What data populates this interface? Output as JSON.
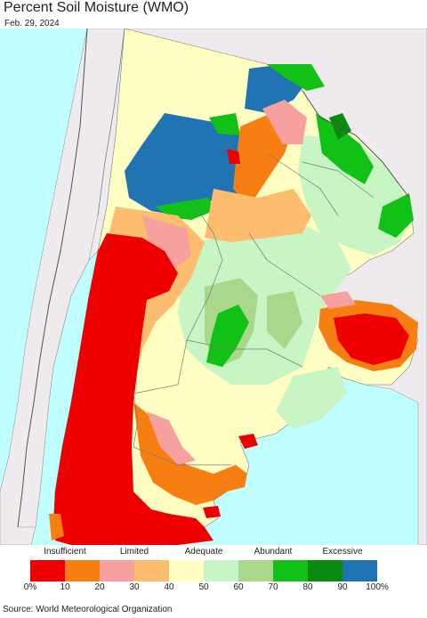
{
  "title": "Percent Soil Moisture (WMO)",
  "date": "Feb. 29, 2024",
  "source": "Source: World Meteorological Organization",
  "legend": {
    "categories": [
      "Insufficient",
      "Limited",
      "Adequate",
      "Abundant",
      "Excessive"
    ],
    "ticks": [
      "0%",
      "10",
      "20",
      "30",
      "40",
      "50",
      "60",
      "70",
      "80",
      "90",
      "100%"
    ],
    "colors": [
      "#ee0000",
      "#f77f12",
      "#f7a0a0",
      "#fdbd6e",
      "#ffffc4",
      "#c8f5c4",
      "#a9d88c",
      "#11c116",
      "#0a8a0e",
      "#2174b4"
    ]
  },
  "map_colors": {
    "ocean": "#bfffff",
    "outside_land": "#eeeaee",
    "borders": "#7a7a7a"
  }
}
